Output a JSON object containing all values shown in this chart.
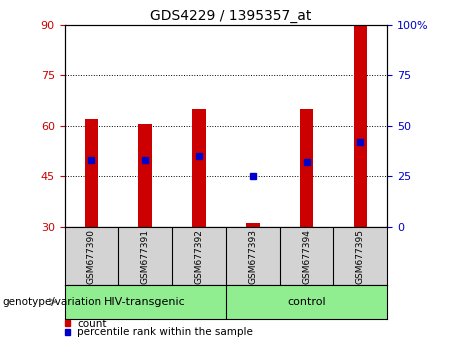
{
  "title": "GDS4229 / 1395357_at",
  "samples": [
    "GSM677390",
    "GSM677391",
    "GSM677392",
    "GSM677393",
    "GSM677394",
    "GSM677395"
  ],
  "group_labels": [
    "HIV-transgenic",
    "control"
  ],
  "count_values": [
    62,
    60.5,
    65,
    31,
    65,
    90
  ],
  "count_base": 30,
  "percentile_values": [
    33,
    33,
    35,
    25,
    32,
    42
  ],
  "left_yticks": [
    30,
    45,
    60,
    75,
    90
  ],
  "right_yticks": [
    0,
    25,
    50,
    75,
    100
  ],
  "right_ytick_labels": [
    "0",
    "25",
    "50",
    "75",
    "100%"
  ],
  "ylim_left": [
    30,
    90
  ],
  "ylim_right": [
    0,
    100
  ],
  "bar_color": "#CC0000",
  "blue_color": "#0000CC",
  "bar_width": 0.25,
  "left_tick_color": "#CC0000",
  "right_tick_color": "#0000CC",
  "grid_dotted_values": [
    45,
    60,
    75
  ],
  "legend_count_label": "count",
  "legend_percentile_label": "percentile rank within the sample",
  "genotype_label": "genotype/variation",
  "subplot_bg": "#D3D3D3",
  "green_bg": "#90EE90",
  "title_fontsize": 10,
  "tick_labelsize": 8,
  "sample_fontsize": 6.5,
  "group_fontsize": 8,
  "legend_fontsize": 7.5,
  "genotype_fontsize": 7.5
}
